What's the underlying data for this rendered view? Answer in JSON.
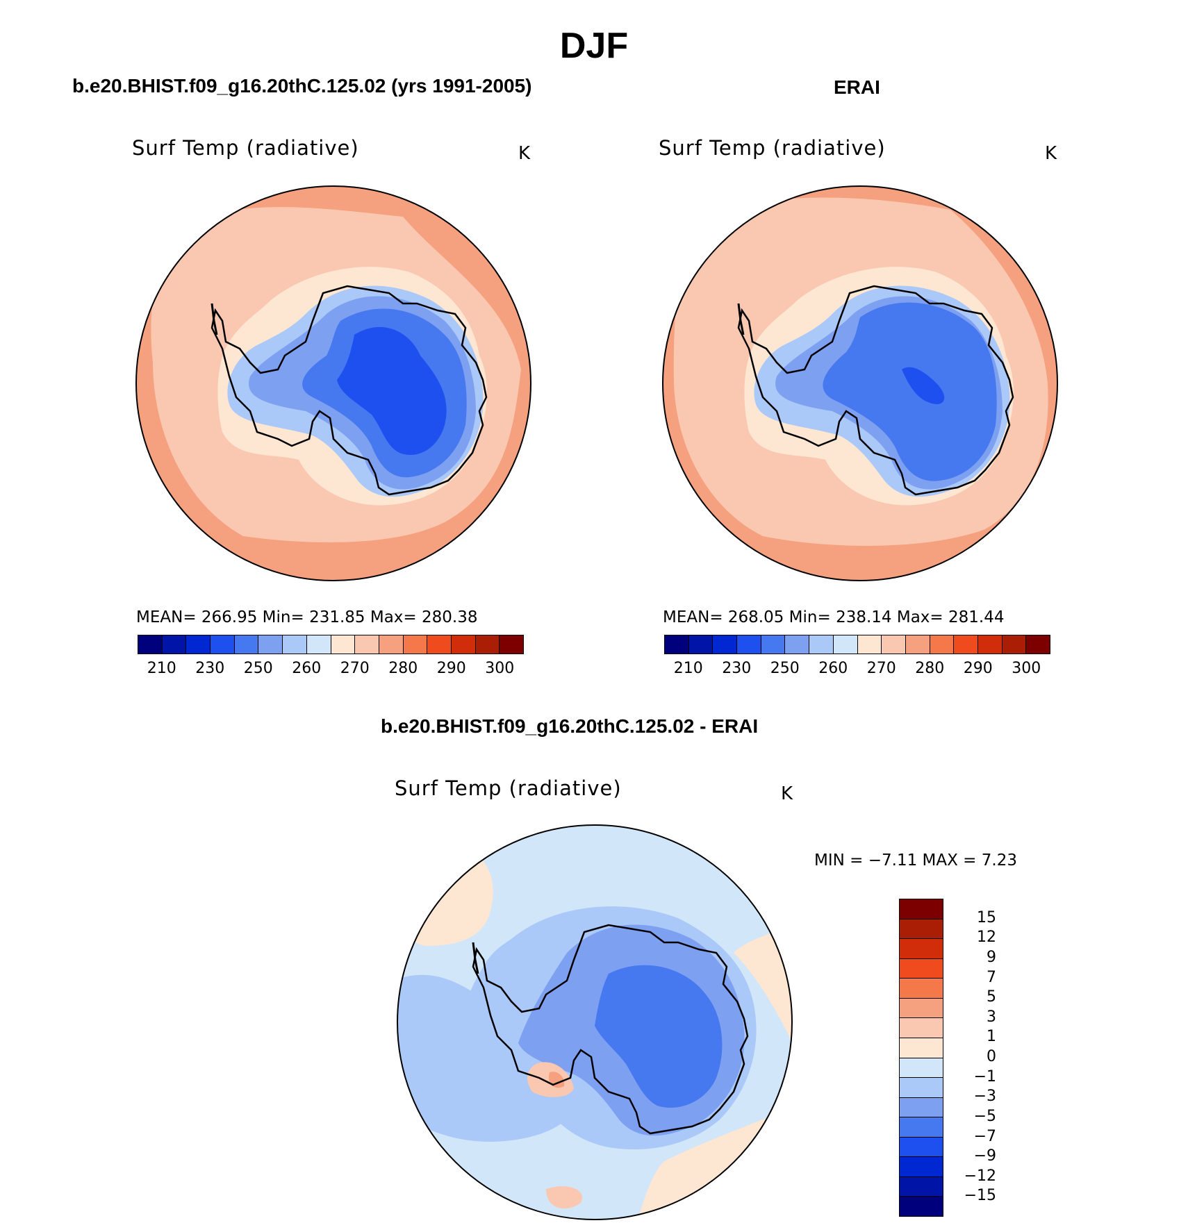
{
  "figure": {
    "season": "DJF"
  },
  "panels": {
    "model": {
      "title": "b.e20.BHIST.f09_g16.20thC.125.02 (yrs 1991-2005)",
      "variable": "Surf Temp (radiative)",
      "units": "K",
      "stats": "MEAN= 266.95   Min= 231.85   Max= 280.38"
    },
    "obs": {
      "title": "ERAI",
      "variable": "Surf Temp (radiative)",
      "units": "K",
      "stats": "MEAN= 268.05   Min= 238.14   Max= 281.44"
    },
    "diff": {
      "title": "b.e20.BHIST.f09_g16.20thC.125.02 - ERAI",
      "variable": "Surf Temp (radiative)",
      "units": "K",
      "stats": "MIN =   −7.11  MAX =    7.23"
    }
  },
  "chart_data": [
    {
      "type": "heatmap",
      "title": "b.e20.BHIST.f09_g16.20thC.125.02 (yrs 1991-2005)",
      "variable": "Surf Temp (radiative)",
      "units": "K",
      "projection": "south polar stereographic",
      "mean": 266.95,
      "min": 231.85,
      "max": 280.38,
      "levels": [
        210,
        230,
        250,
        260,
        270,
        280,
        290,
        300
      ],
      "tick_labels": [
        "210",
        "230",
        "250",
        "260",
        "270",
        "280",
        "290",
        "300"
      ],
      "colors": [
        "#00007d",
        "#0014a8",
        "#0028d2",
        "#1e50f0",
        "#4678f0",
        "#7ea0f0",
        "#aac8f8",
        "#d2e6fa",
        "#fde6d2",
        "#fac8b0",
        "#f5a07e",
        "#f5784a",
        "#f04b1e",
        "#d22d0a",
        "#aa1e05",
        "#7d0000"
      ],
      "field_colors": {
        "ocean_outer": "#f5a07e",
        "ocean_inner": "#fac8b0",
        "coast": "#fde6d2",
        "ice_edge": "#aac8f8",
        "ice_mid": "#7ea0f0",
        "ice_inner": "#4678f0",
        "ice_core": "#1e50f0"
      }
    },
    {
      "type": "heatmap",
      "title": "ERAI",
      "variable": "Surf Temp (radiative)",
      "units": "K",
      "projection": "south polar stereographic",
      "mean": 268.05,
      "min": 238.14,
      "max": 281.44,
      "levels": [
        210,
        230,
        250,
        260,
        270,
        280,
        290,
        300
      ],
      "tick_labels": [
        "210",
        "230",
        "250",
        "260",
        "270",
        "280",
        "290",
        "300"
      ],
      "colors": [
        "#00007d",
        "#0014a8",
        "#0028d2",
        "#1e50f0",
        "#4678f0",
        "#7ea0f0",
        "#aac8f8",
        "#d2e6fa",
        "#fde6d2",
        "#fac8b0",
        "#f5a07e",
        "#f5784a",
        "#f04b1e",
        "#d22d0a",
        "#aa1e05",
        "#7d0000"
      ],
      "field_colors": {
        "ocean_outer": "#f5a07e",
        "ocean_inner": "#fac8b0",
        "coast": "#fde6d2",
        "ice_edge": "#aac8f8",
        "ice_mid": "#7ea0f0",
        "ice_inner": "#4678f0",
        "ice_core": "#1e50f0"
      }
    },
    {
      "type": "heatmap",
      "title": "b.e20.BHIST.f09_g16.20thC.125.02 - ERAI",
      "variable": "Surf Temp (radiative)",
      "units": "K",
      "projection": "south polar stereographic",
      "min": -7.11,
      "max": 7.23,
      "levels": [
        15,
        12,
        9,
        7,
        5,
        3,
        1,
        0,
        -1,
        -3,
        -5,
        -7,
        -9,
        -12,
        -15
      ],
      "tick_labels": [
        "15",
        "12",
        "9",
        "7",
        "5",
        "3",
        "1",
        "0",
        "−1",
        "−3",
        "−5",
        "−7",
        "−9",
        "−12",
        "−15"
      ],
      "colors": [
        "#7d0000",
        "#aa1e05",
        "#d22d0a",
        "#f04b1e",
        "#f5784a",
        "#f5a07e",
        "#fac8b0",
        "#fde6d2",
        "#d2e6fa",
        "#aac8f8",
        "#7ea0f0",
        "#4678f0",
        "#1e50f0",
        "#0028d2",
        "#0014a8",
        "#00007d"
      ]
    }
  ]
}
